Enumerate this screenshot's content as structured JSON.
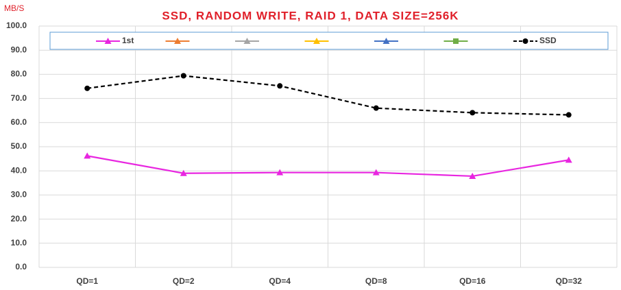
{
  "chart_data": {
    "type": "line",
    "title": "SSD, RANDOM WRITE, RAID 1, DATA SIZE=256K",
    "y_label": "MB/S",
    "categories": [
      "QD=1",
      "QD=2",
      "QD=4",
      "QD=8",
      "QD=16",
      "QD=32"
    ],
    "series": [
      {
        "name": "1st",
        "color": "#e826e0",
        "marker": "triangle",
        "dash": false,
        "values": [
          46.2,
          39.0,
          39.3,
          39.3,
          37.8,
          44.5
        ]
      },
      {
        "color": "#ed7d31",
        "marker": "triangle",
        "dash": false,
        "values": [
          null,
          null,
          null,
          null,
          null,
          null
        ]
      },
      {
        "color": "#a5a5a5",
        "marker": "triangle",
        "dash": false,
        "values": [
          null,
          null,
          null,
          null,
          null,
          null
        ]
      },
      {
        "color": "#ffc000",
        "marker": "triangle",
        "dash": false,
        "values": [
          null,
          null,
          null,
          null,
          null,
          null
        ]
      },
      {
        "color": "#4472c4",
        "marker": "triangle",
        "dash": false,
        "values": [
          null,
          null,
          null,
          null,
          null,
          null
        ]
      },
      {
        "color": "#70ad47",
        "marker": "square",
        "dash": false,
        "values": [
          null,
          null,
          null,
          null,
          null,
          null
        ]
      },
      {
        "name": "SSD",
        "color": "#000000",
        "marker": "circle",
        "dash": true,
        "values": [
          74.2,
          79.4,
          75.2,
          66.0,
          64.1,
          63.2
        ]
      }
    ],
    "ylim": [
      0,
      100
    ],
    "yticks": [
      {
        "value": 0,
        "label": "0.0"
      },
      {
        "value": 10,
        "label": "10.0"
      },
      {
        "value": 20,
        "label": "20.0"
      },
      {
        "value": 30,
        "label": "30.0"
      },
      {
        "value": 40,
        "label": "40.0"
      },
      {
        "value": 50,
        "label": "50.0"
      },
      {
        "value": 60,
        "label": "60.0"
      },
      {
        "value": 70,
        "label": "70.0"
      },
      {
        "value": 80,
        "label": "80.0"
      },
      {
        "value": 90,
        "label": "90.0"
      },
      {
        "value": 100,
        "label": "100.0"
      }
    ],
    "grid": true,
    "legend": "top"
  }
}
